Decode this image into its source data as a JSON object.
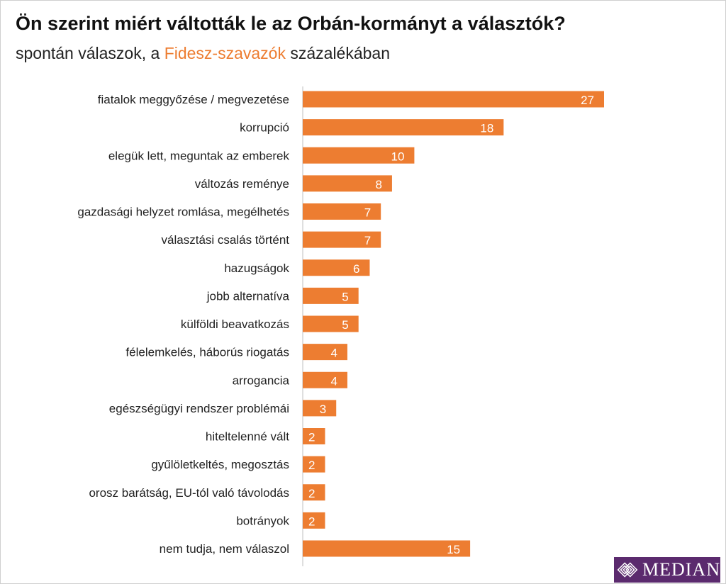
{
  "title": "Ön szerint miért váltották le az Orbán-kormányt a választók?",
  "subtitle": {
    "before": "spontán válaszok, a ",
    "highlight": "Fidesz-szavazók",
    "after": " százalékában"
  },
  "colors": {
    "bar": "#ED7D31",
    "highlight": "#ED7D31",
    "axis": "#bfbfbf",
    "label": "#222222",
    "value_label": "#ffffff",
    "logo_bg": "#5b2a6e"
  },
  "logo": {
    "text": "MEDIAN"
  },
  "chart_data": {
    "type": "bar",
    "orientation": "horizontal",
    "title": "Ön szerint miért váltották le az Orbán-kormányt a választók?",
    "subtitle": "spontán válaszok, a Fidesz-szavazók százalékában",
    "xlabel": "",
    "ylabel": "",
    "xlim": [
      0,
      30
    ],
    "grid": false,
    "categories": [
      "fiatalok meggyőzése / megvezetése",
      "korrupció",
      "elegük lett, meguntak az emberek",
      "változás reménye",
      "gazdasági helyzet romlása, megélhetés",
      "választási csalás történt",
      "hazugságok",
      "jobb alternatíva",
      "külföldi beavatkozás",
      "félelemkelés, háborús riogatás",
      "arrogancia",
      "egészségügyi rendszer problémái",
      "hiteltelenné vált",
      "gyűlöletkeltés, megosztás",
      "orosz barátság, EU-tól való távolodás",
      "botrányok",
      "nem tudja, nem válaszol"
    ],
    "values": [
      27,
      18,
      10,
      8,
      7,
      7,
      6,
      5,
      5,
      4,
      4,
      3,
      2,
      2,
      2,
      2,
      15
    ]
  }
}
